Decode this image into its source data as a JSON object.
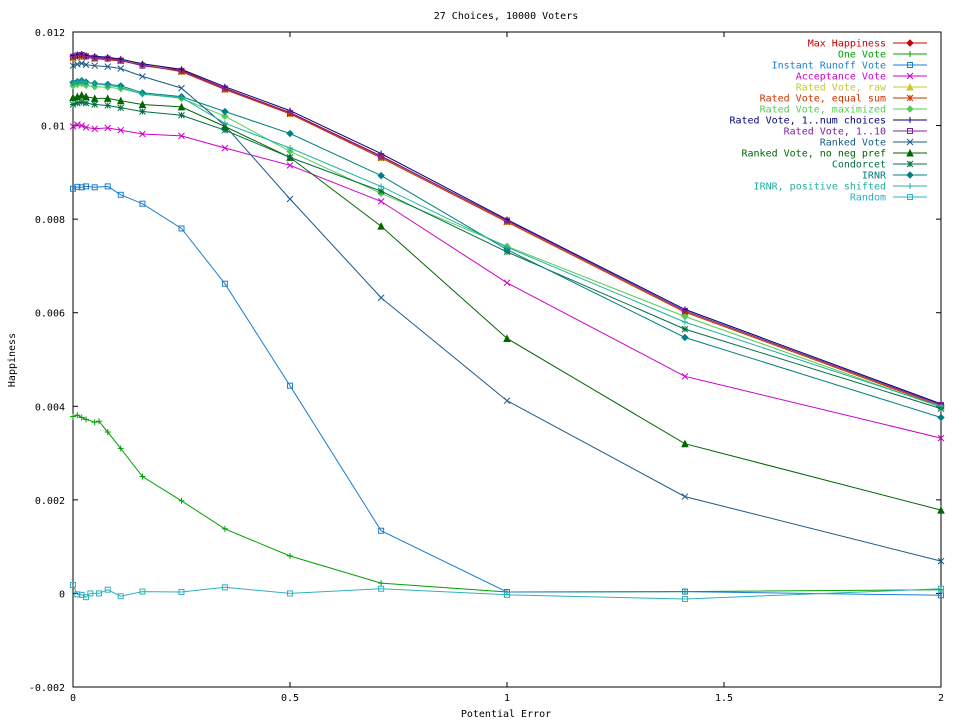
{
  "chart_data": {
    "type": "line",
    "title": "27 Choices, 10000 Voters",
    "xlabel": "Potential Error",
    "ylabel": "Happiness",
    "xlim": [
      0,
      2
    ],
    "ylim": [
      -0.002,
      0.012
    ],
    "xticks": [
      0,
      0.5,
      1,
      1.5,
      2
    ],
    "xtick_labels": [
      "0",
      "0.5",
      "1",
      "1.5",
      "2"
    ],
    "yticks": [
      -0.002,
      0,
      0.002,
      0.004,
      0.006,
      0.008,
      0.01,
      0.012
    ],
    "ytick_labels": [
      "-0.002",
      "0",
      "0.002",
      "0.004",
      "0.006",
      "0.008",
      "0.01",
      "0.012"
    ],
    "grid": false,
    "legend_position": "top-right",
    "series": [
      {
        "name": "Max Happiness",
        "color": "#cc0000",
        "marker": "diamond",
        "points": [
          [
            0,
            0.01148
          ],
          [
            0.01,
            0.01149
          ],
          [
            0.02,
            0.0115
          ],
          [
            0.03,
            0.01148
          ],
          [
            0.05,
            0.01146
          ],
          [
            0.08,
            0.01144
          ],
          [
            0.11,
            0.0114
          ],
          [
            0.16,
            0.0113
          ],
          [
            0.25,
            0.01118
          ],
          [
            0.35,
            0.0108
          ],
          [
            0.5,
            0.01028
          ],
          [
            0.71,
            0.00935
          ],
          [
            1,
            0.00796
          ],
          [
            1.41,
            0.00603
          ],
          [
            2,
            0.00402
          ]
        ]
      },
      {
        "name": "One Vote",
        "color": "#00a000",
        "marker": "plus",
        "points": [
          [
            0,
            0.00378
          ],
          [
            0.01,
            0.00381
          ],
          [
            0.02,
            0.00376
          ],
          [
            0.03,
            0.00372
          ],
          [
            0.05,
            0.00366
          ],
          [
            0.06,
            0.00368
          ],
          [
            0.08,
            0.00345
          ],
          [
            0.11,
            0.0031
          ],
          [
            0.16,
            0.0025
          ],
          [
            0.25,
            0.00198
          ],
          [
            0.35,
            0.00138
          ],
          [
            0.5,
            0.0008
          ],
          [
            0.71,
            0.00022
          ],
          [
            1,
            3e-05
          ],
          [
            1.41,
            4e-05
          ],
          [
            2,
            8e-05
          ]
        ]
      },
      {
        "name": "Instant Runoff Vote",
        "color": "#1c7ecf",
        "marker": "square",
        "points": [
          [
            0,
            0.00865
          ],
          [
            0.01,
            0.00869
          ],
          [
            0.02,
            0.00868
          ],
          [
            0.03,
            0.0087
          ],
          [
            0.05,
            0.00868
          ],
          [
            0.08,
            0.0087
          ],
          [
            0.11,
            0.00852
          ],
          [
            0.16,
            0.00833
          ],
          [
            0.25,
            0.0078
          ],
          [
            0.35,
            0.00662
          ],
          [
            0.5,
            0.00444
          ],
          [
            0.71,
            0.00134
          ],
          [
            1,
            3e-05
          ],
          [
            1.41,
            4e-05
          ],
          [
            2,
            -4e-05
          ]
        ]
      },
      {
        "name": "Acceptance Vote",
        "color": "#cc00cc",
        "marker": "cross",
        "points": [
          [
            0,
            0.00998
          ],
          [
            0.01,
            0.01002
          ],
          [
            0.02,
            0.01
          ],
          [
            0.03,
            0.00996
          ],
          [
            0.05,
            0.00993
          ],
          [
            0.08,
            0.00995
          ],
          [
            0.11,
            0.0099
          ],
          [
            0.16,
            0.00982
          ],
          [
            0.25,
            0.00978
          ],
          [
            0.35,
            0.00952
          ],
          [
            0.5,
            0.00915
          ],
          [
            0.71,
            0.00838
          ],
          [
            1,
            0.00664
          ],
          [
            1.41,
            0.00464
          ],
          [
            2,
            0.00332
          ]
        ]
      },
      {
        "name": "Rated Vote, raw",
        "color": "#c8c832",
        "marker": "triangle",
        "points": [
          [
            0,
            0.01146
          ],
          [
            0.02,
            0.01148
          ],
          [
            0.05,
            0.01144
          ],
          [
            0.11,
            0.0114
          ],
          [
            0.25,
            0.01116
          ],
          [
            0.35,
            0.01078
          ],
          [
            0.5,
            0.01026
          ],
          [
            0.71,
            0.00932
          ],
          [
            1,
            0.00795
          ],
          [
            1.41,
            0.00602
          ],
          [
            2,
            0.00401
          ]
        ]
      },
      {
        "name": "Rated Vote, equal sum",
        "color": "#cc3300",
        "marker": "star",
        "points": [
          [
            0,
            0.01145
          ],
          [
            0.02,
            0.01147
          ],
          [
            0.05,
            0.01143
          ],
          [
            0.11,
            0.01138
          ],
          [
            0.25,
            0.01115
          ],
          [
            0.35,
            0.01077
          ],
          [
            0.5,
            0.01025
          ],
          [
            0.71,
            0.00931
          ],
          [
            1,
            0.00794
          ],
          [
            1.41,
            0.00601
          ],
          [
            2,
            0.004
          ]
        ]
      },
      {
        "name": "Rated Vote, maximized",
        "color": "#55cc55",
        "marker": "diamond",
        "points": [
          [
            0,
            0.01085
          ],
          [
            0.01,
            0.01088
          ],
          [
            0.02,
            0.0109
          ],
          [
            0.03,
            0.01086
          ],
          [
            0.05,
            0.01083
          ],
          [
            0.08,
            0.01082
          ],
          [
            0.11,
            0.01079
          ],
          [
            0.16,
            0.01068
          ],
          [
            0.25,
            0.01058
          ],
          [
            0.35,
            0.0102
          ],
          [
            0.5,
            0.00945
          ],
          [
            0.71,
            0.00855
          ],
          [
            1,
            0.00742
          ],
          [
            1.41,
            0.00592
          ],
          [
            2,
            0.00398
          ]
        ]
      },
      {
        "name": "Rated Vote, 1..num choices",
        "color": "#000080",
        "marker": "plus",
        "points": [
          [
            0,
            0.0115
          ],
          [
            0.01,
            0.01152
          ],
          [
            0.02,
            0.01153
          ],
          [
            0.03,
            0.0115
          ],
          [
            0.05,
            0.01148
          ],
          [
            0.08,
            0.01146
          ],
          [
            0.11,
            0.01142
          ],
          [
            0.16,
            0.01132
          ],
          [
            0.25,
            0.0112
          ],
          [
            0.35,
            0.01083
          ],
          [
            0.5,
            0.01032
          ],
          [
            0.71,
            0.0094
          ],
          [
            1,
            0.00799
          ],
          [
            1.41,
            0.00607
          ],
          [
            2,
            0.00405
          ]
        ]
      },
      {
        "name": "Rated Vote, 1..10",
        "color": "#8020a0",
        "marker": "square",
        "points": [
          [
            0,
            0.01147
          ],
          [
            0.01,
            0.0115
          ],
          [
            0.02,
            0.01151
          ],
          [
            0.03,
            0.01148
          ],
          [
            0.05,
            0.01145
          ],
          [
            0.08,
            0.01143
          ],
          [
            0.11,
            0.01139
          ],
          [
            0.16,
            0.01128
          ],
          [
            0.25,
            0.01117
          ],
          [
            0.35,
            0.01079
          ],
          [
            0.5,
            0.01027
          ],
          [
            0.71,
            0.00934
          ],
          [
            1,
            0.00797
          ],
          [
            1.41,
            0.00604
          ],
          [
            2,
            0.00403
          ]
        ]
      },
      {
        "name": "Ranked Vote",
        "color": "#1a5a8a",
        "marker": "cross",
        "points": [
          [
            0,
            0.01128
          ],
          [
            0.01,
            0.01131
          ],
          [
            0.02,
            0.01133
          ],
          [
            0.03,
            0.0113
          ],
          [
            0.05,
            0.01128
          ],
          [
            0.08,
            0.01126
          ],
          [
            0.11,
            0.01122
          ],
          [
            0.16,
            0.01105
          ],
          [
            0.25,
            0.0108
          ],
          [
            0.35,
            0.01
          ],
          [
            0.5,
            0.00843
          ],
          [
            0.71,
            0.00632
          ],
          [
            1,
            0.00412
          ],
          [
            1.41,
            0.00207
          ],
          [
            2,
            0.00069
          ]
        ]
      },
      {
        "name": "Ranked Vote, no neg pref",
        "color": "#006600",
        "marker": "triangle",
        "points": [
          [
            0,
            0.0106
          ],
          [
            0.01,
            0.01062
          ],
          [
            0.02,
            0.01065
          ],
          [
            0.03,
            0.01062
          ],
          [
            0.05,
            0.01058
          ],
          [
            0.08,
            0.01058
          ],
          [
            0.11,
            0.01053
          ],
          [
            0.16,
            0.01045
          ],
          [
            0.25,
            0.0104
          ],
          [
            0.35,
            0.00998
          ],
          [
            0.5,
            0.00932
          ],
          [
            0.71,
            0.00785
          ],
          [
            1,
            0.00545
          ],
          [
            1.41,
            0.0032
          ],
          [
            2,
            0.00178
          ]
        ]
      },
      {
        "name": "Condorcet",
        "color": "#007040",
        "marker": "star",
        "points": [
          [
            0,
            0.01045
          ],
          [
            0.01,
            0.01048
          ],
          [
            0.02,
            0.0105
          ],
          [
            0.03,
            0.01048
          ],
          [
            0.05,
            0.01045
          ],
          [
            0.08,
            0.01043
          ],
          [
            0.11,
            0.01038
          ],
          [
            0.16,
            0.0103
          ],
          [
            0.25,
            0.01022
          ],
          [
            0.35,
            0.0099
          ],
          [
            0.5,
            0.00932
          ],
          [
            0.71,
            0.0086
          ],
          [
            1,
            0.0073
          ],
          [
            1.41,
            0.00565
          ],
          [
            2,
            0.00395
          ]
        ]
      },
      {
        "name": "IRNR",
        "color": "#008080",
        "marker": "diamond",
        "points": [
          [
            0,
            0.01092
          ],
          [
            0.01,
            0.01094
          ],
          [
            0.02,
            0.01096
          ],
          [
            0.03,
            0.01093
          ],
          [
            0.05,
            0.0109
          ],
          [
            0.08,
            0.01088
          ],
          [
            0.11,
            0.01085
          ],
          [
            0.16,
            0.0107
          ],
          [
            0.25,
            0.01062
          ],
          [
            0.35,
            0.0103
          ],
          [
            0.5,
            0.00983
          ],
          [
            0.71,
            0.00893
          ],
          [
            1,
            0.00735
          ],
          [
            1.41,
            0.00547
          ],
          [
            2,
            0.00376
          ]
        ]
      },
      {
        "name": "IRNR, positive shifted",
        "color": "#20b0a0",
        "marker": "plus",
        "points": [
          [
            0,
            0.0109
          ],
          [
            0.01,
            0.01093
          ],
          [
            0.02,
            0.01095
          ],
          [
            0.03,
            0.01092
          ],
          [
            0.05,
            0.01089
          ],
          [
            0.08,
            0.01086
          ],
          [
            0.11,
            0.01082
          ],
          [
            0.16,
            0.01067
          ],
          [
            0.25,
            0.0106
          ],
          [
            0.35,
            0.01005
          ],
          [
            0.5,
            0.00952
          ],
          [
            0.71,
            0.0087
          ],
          [
            1,
            0.0074
          ],
          [
            1.41,
            0.0058
          ],
          [
            2,
            0.004
          ]
        ]
      },
      {
        "name": "Random",
        "color": "#30b0c0",
        "marker": "square",
        "points": [
          [
            0,
            0.00018
          ],
          [
            0.01,
            -2e-05
          ],
          [
            0.02,
            -3e-05
          ],
          [
            0.03,
            -8e-05
          ],
          [
            0.04,
            0.0
          ],
          [
            0.06,
            0.0
          ],
          [
            0.08,
            8e-05
          ],
          [
            0.11,
            -6e-05
          ],
          [
            0.16,
            4e-05
          ],
          [
            0.25,
            3e-05
          ],
          [
            0.35,
            0.00013
          ],
          [
            0.5,
            0.0
          ],
          [
            0.71,
            0.0001
          ],
          [
            1,
            -3e-05
          ],
          [
            1.41,
            -0.00012
          ],
          [
            2,
            0.0001
          ]
        ]
      }
    ]
  }
}
